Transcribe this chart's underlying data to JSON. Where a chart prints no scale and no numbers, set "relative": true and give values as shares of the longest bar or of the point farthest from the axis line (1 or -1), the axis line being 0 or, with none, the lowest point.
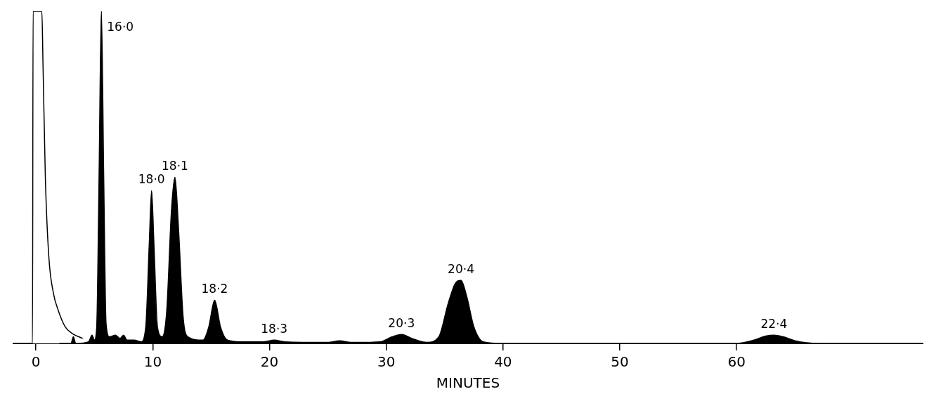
{
  "chart_data": {
    "type": "area",
    "relative": true,
    "xlabel": "MINUTES",
    "xlim": [
      -2,
      76
    ],
    "xticks": [
      0,
      10,
      20,
      30,
      40,
      50,
      60
    ],
    "grid": false,
    "legend": false,
    "series": [
      {
        "type": "line",
        "color": "#000000",
        "x": [
          -2,
          -0.3,
          -0.25,
          0.5,
          0.6,
          0.8,
          1.1,
          1.5,
          1.9,
          2.5,
          3.1,
          4
        ],
        "values": [
          0,
          0,
          1,
          1,
          0.84,
          0.5,
          0.26,
          0.15,
          0.1,
          0.05,
          0.03,
          0.015
        ]
      },
      {
        "color": "#000000",
        "x": [
          2,
          3,
          3.2,
          3.4,
          4.5,
          4.8,
          5.0,
          5.2,
          5.4,
          5.6,
          5.8,
          6.0,
          6.3,
          6.8,
          7.2,
          7.5,
          7.8,
          8.4,
          9.0,
          9.4,
          9.7,
          9.9,
          10.1,
          10.4,
          10.8,
          11.2,
          11.6,
          11.9,
          12.2,
          12.6,
          13,
          14.3,
          14.8,
          15.3,
          15.8,
          16.4,
          17.5,
          19.5,
          20.4,
          21.3,
          25,
          26,
          27,
          29.5,
          30.5,
          31.3,
          32.2,
          33.5,
          34.5,
          35.3,
          35.9,
          36.4,
          36.9,
          37.5,
          38.3,
          40,
          60,
          61.5,
          62.5,
          63.2,
          64,
          65,
          67,
          76
        ],
        "values": [
          0,
          0,
          0.02,
          0,
          0.005,
          0.025,
          0.01,
          0.05,
          0.5,
          1,
          0.5,
          0.06,
          0.02,
          0.025,
          0.015,
          0.025,
          0.01,
          0.01,
          0.005,
          0.05,
          0.3,
          0.46,
          0.3,
          0.05,
          0.02,
          0.1,
          0.4,
          0.5,
          0.35,
          0.08,
          0.02,
          0.01,
          0.05,
          0.13,
          0.05,
          0.01,
          0.005,
          0.005,
          0.01,
          0.005,
          0.003,
          0.008,
          0.003,
          0.005,
          0.02,
          0.027,
          0.015,
          0.003,
          0.02,
          0.12,
          0.18,
          0.19,
          0.14,
          0.05,
          0.005,
          0,
          0,
          0.01,
          0.022,
          0.025,
          0.02,
          0.008,
          0,
          0
        ]
      }
    ],
    "annotations": [
      {
        "text": "16·0",
        "x": 5.6,
        "y": 1
      },
      {
        "text": "18·0",
        "x": 9.9,
        "y": 0.46
      },
      {
        "text": "18·1",
        "x": 11.9,
        "y": 0.5
      },
      {
        "text": "18·2",
        "x": 15.3,
        "y": 0.13
      },
      {
        "text": "18·3",
        "x": 20.4,
        "y": 0.01
      },
      {
        "text": "20·3",
        "x": 31.3,
        "y": 0.027
      },
      {
        "text": "20·4",
        "x": 36.4,
        "y": 0.19
      },
      {
        "text": "22·4",
        "x": 63.2,
        "y": 0.025
      }
    ]
  }
}
